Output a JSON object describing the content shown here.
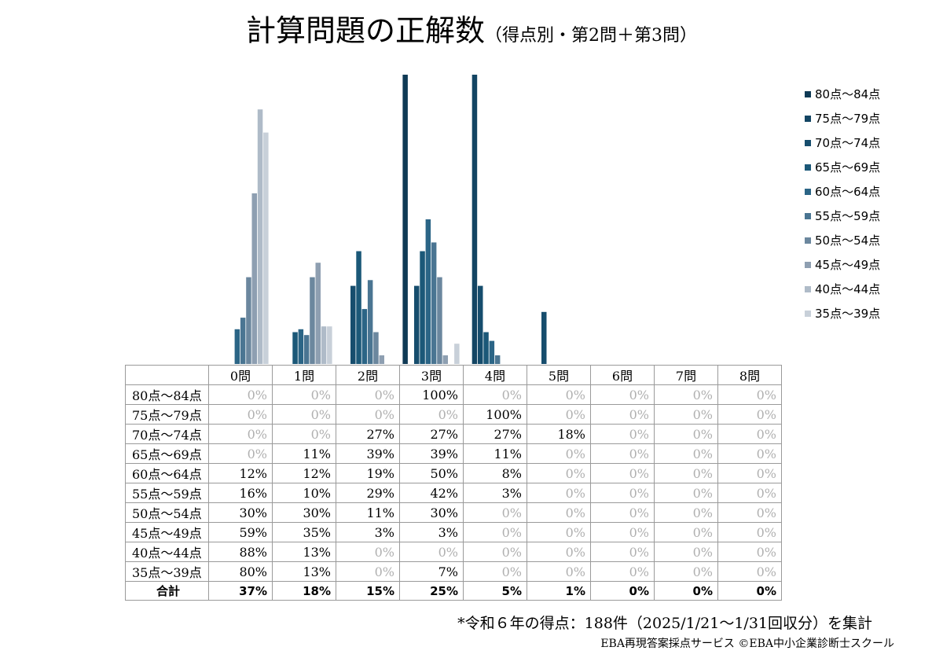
{
  "title": {
    "main": "計算問題の正解数",
    "sub": "（得点別・第2問＋第3問）"
  },
  "footnote": "*令和６年の得点：188件（2025/1/21〜1/31回収分）を集計",
  "credit": "EBA再現答案採点サービス ©EBA中小企業診断士スクール",
  "chart_data": {
    "type": "bar",
    "categories": [
      "0問",
      "1問",
      "2問",
      "3問",
      "4問",
      "5問",
      "6問",
      "7問",
      "8問"
    ],
    "ylim": [
      0,
      100
    ],
    "legend_position": "right",
    "series": [
      {
        "name": "80点〜84点",
        "color": "#0f3a55",
        "values": [
          0,
          0,
          0,
          100,
          0,
          0,
          0,
          0,
          0
        ]
      },
      {
        "name": "75点〜79点",
        "color": "#134563",
        "values": [
          0,
          0,
          0,
          0,
          100,
          0,
          0,
          0,
          0
        ]
      },
      {
        "name": "70点〜74点",
        "color": "#164d6d",
        "values": [
          0,
          0,
          27,
          27,
          27,
          18,
          0,
          0,
          0
        ]
      },
      {
        "name": "65点〜69点",
        "color": "#1b5878",
        "values": [
          0,
          11,
          39,
          39,
          11,
          0,
          0,
          0,
          0
        ]
      },
      {
        "name": "60点〜64点",
        "color": "#2b6586",
        "values": [
          12,
          12,
          19,
          50,
          8,
          0,
          0,
          0,
          0
        ]
      },
      {
        "name": "55点〜59点",
        "color": "#4a7592",
        "values": [
          16,
          10,
          29,
          42,
          3,
          0,
          0,
          0,
          0
        ]
      },
      {
        "name": "50点〜54点",
        "color": "#6b879e",
        "values": [
          30,
          30,
          11,
          30,
          0,
          0,
          0,
          0,
          0
        ]
      },
      {
        "name": "45点〜49点",
        "color": "#8e9fb1",
        "values": [
          59,
          35,
          3,
          3,
          0,
          0,
          0,
          0,
          0
        ]
      },
      {
        "name": "40点〜44点",
        "color": "#afbbc8",
        "values": [
          88,
          13,
          0,
          0,
          0,
          0,
          0,
          0,
          0
        ]
      },
      {
        "name": "35点〜39点",
        "color": "#c8d0d9",
        "values": [
          80,
          13,
          0,
          7,
          0,
          0,
          0,
          0,
          0
        ]
      }
    ],
    "totals_label": "合計",
    "totals": [
      "37%",
      "18%",
      "15%",
      "25%",
      "5%",
      "1%",
      "0%",
      "0%",
      "0%"
    ]
  }
}
